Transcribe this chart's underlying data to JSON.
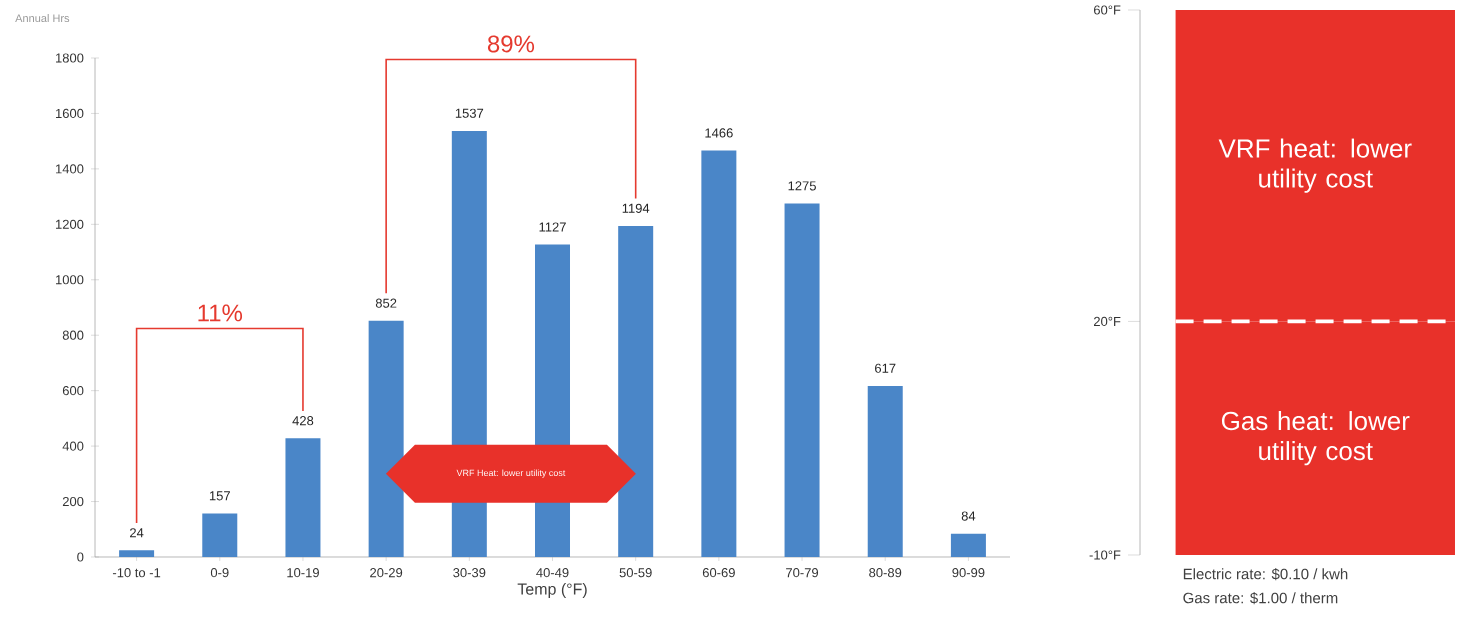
{
  "chart_data": [
    {
      "type": "bar",
      "ylabel": "Annual Hrs",
      "xlabel": "Temp (°F)",
      "categories": [
        "-10 to -1",
        "0-9",
        "10-19",
        "20-29",
        "30-39",
        "40-49",
        "50-59",
        "60-69",
        "70-79",
        "80-89",
        "90-99"
      ],
      "values": [
        24,
        157,
        428,
        852,
        1537,
        1127,
        1194,
        1466,
        1275,
        617,
        84
      ],
      "color": "#4a86c8",
      "data_labels": true,
      "ylim": [
        0,
        1800
      ],
      "yticks": [
        0,
        200,
        400,
        600,
        800,
        1000,
        1200,
        1400,
        1600,
        1800
      ],
      "annotations": [
        "11%",
        "89%",
        "VRF Heat: lower utility cost"
      ]
    },
    {
      "type": "bar",
      "categories": [
        null
      ],
      "ylim": [
        -10,
        60
      ],
      "series": [
        {
          "name": "Gas heat: lower utility cost",
          "color": "#e8312a",
          "base": [
            -10
          ],
          "values": [
            30
          ]
        },
        {
          "name": "VRF heat: lower utility cost",
          "color": "#e8312a",
          "base": [
            20
          ],
          "values": [
            40
          ]
        }
      ],
      "yticks": [
        {
          "value": -10,
          "label": "-10°F"
        },
        {
          "value": 20,
          "label": "20°F"
        },
        {
          "value": 60,
          "label": "60°F"
        }
      ],
      "ref_lines": [
        {
          "axis": "y",
          "value": 20,
          "color": "#ffffff",
          "line_style": "dashed"
        }
      ],
      "annotations": [
        "Electric rate:  $0.10 / kwh",
        "Gas rate:  $1.00 / therm"
      ]
    }
  ]
}
